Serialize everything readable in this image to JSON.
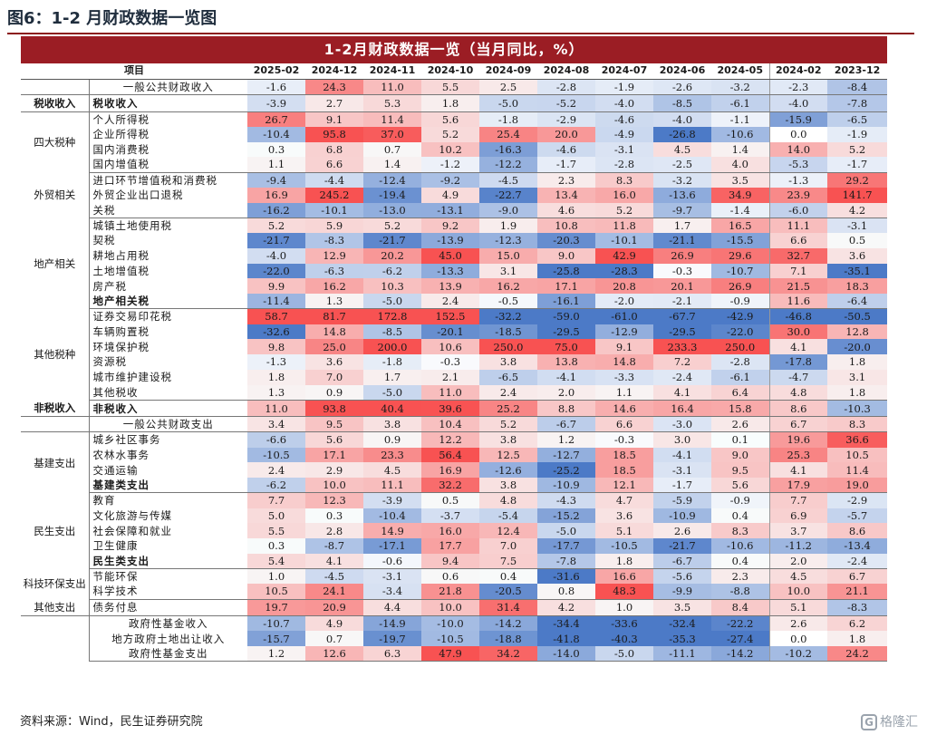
{
  "figure_title": "图6：1-2 月财政数据一览图",
  "source": "资料来源：Wind，民生证券研究院",
  "watermark": "格隆汇",
  "chart_data": {
    "type": "table",
    "title": "1-2月财政数据一览（当月同比，%）",
    "item_header": "项目",
    "columns": [
      "2025-02",
      "2024-12",
      "2024-11",
      "2024-10",
      "2024-09",
      "2024-08",
      "2024-07",
      "2024-06",
      "2024-05",
      "2024-02",
      "2023-12"
    ],
    "groups": [
      {
        "label": "",
        "rows": [
          {
            "item": "一般公共财政收入",
            "values": [
              -1.6,
              24.3,
              11.0,
              5.5,
              2.5,
              -2.8,
              -1.9,
              -2.6,
              -3.2,
              -2.3,
              -8.4
            ]
          }
        ]
      },
      {
        "label": "税收收入",
        "rows": [
          {
            "item": "税收收入",
            "bold": true,
            "values": [
              -3.9,
              2.7,
              5.3,
              1.8,
              -5.0,
              -5.2,
              -4.0,
              -8.5,
              -6.1,
              -4.0,
              -7.8
            ]
          }
        ]
      },
      {
        "label": "四大税种",
        "rows": [
          {
            "item": "个人所得税",
            "values": [
              26.7,
              9.1,
              11.4,
              5.6,
              -1.8,
              -2.9,
              -4.6,
              -4.0,
              -1.1,
              -15.9,
              -6.5
            ]
          },
          {
            "item": "企业所得税",
            "values": [
              -10.4,
              95.8,
              37.0,
              5.2,
              25.4,
              20.0,
              -4.9,
              -26.8,
              -10.6,
              0.0,
              -1.9
            ]
          },
          {
            "item": "国内消费税",
            "values": [
              0.3,
              6.8,
              0.7,
              10.2,
              -16.3,
              -4.6,
              -3.1,
              4.5,
              1.4,
              14.0,
              5.2
            ]
          },
          {
            "item": "国内增值税",
            "values": [
              1.1,
              6.6,
              1.4,
              -1.2,
              -12.2,
              -1.7,
              -2.8,
              -2.5,
              4.0,
              -5.3,
              -1.7
            ]
          }
        ]
      },
      {
        "label": "外贸相关",
        "rows": [
          {
            "item": "进口环节增值税和消费税",
            "values": [
              -9.4,
              -4.4,
              -12.4,
              -9.2,
              -4.5,
              2.3,
              8.3,
              -3.2,
              3.5,
              -1.3,
              29.2
            ]
          },
          {
            "item": "外贸企业出口退税",
            "values": [
              16.9,
              245.2,
              -19.4,
              4.9,
              -22.7,
              13.4,
              16.0,
              -13.6,
              34.9,
              23.9,
              141.7
            ]
          },
          {
            "item": "关税",
            "values": [
              -16.2,
              -10.1,
              -13.0,
              -13.1,
              -9.0,
              4.6,
              5.2,
              -9.7,
              -1.4,
              -6.0,
              4.2
            ]
          }
        ]
      },
      {
        "label": "地产相关",
        "rows": [
          {
            "item": "城镇土地使用税",
            "values": [
              5.2,
              5.9,
              5.2,
              9.2,
              1.9,
              10.8,
              11.8,
              1.7,
              16.5,
              11.1,
              -3.1
            ]
          },
          {
            "item": "契税",
            "values": [
              -21.7,
              -8.3,
              -21.7,
              -13.9,
              -12.3,
              -20.3,
              -10.1,
              -21.1,
              -15.5,
              6.6,
              0.5
            ]
          },
          {
            "item": "耕地占用税",
            "values": [
              -4.0,
              12.9,
              20.2,
              45.0,
              15.0,
              9.0,
              42.9,
              26.9,
              29.6,
              32.7,
              3.6
            ]
          },
          {
            "item": "土地增值税",
            "values": [
              -22.0,
              -6.3,
              -6.2,
              -13.3,
              3.1,
              -25.8,
              -28.3,
              -0.3,
              -10.7,
              7.1,
              -35.1
            ]
          },
          {
            "item": "房产税",
            "values": [
              9.9,
              16.2,
              10.3,
              13.9,
              16.2,
              17.1,
              20.8,
              20.1,
              26.9,
              21.5,
              18.3
            ]
          },
          {
            "item": "地产相关税",
            "bold": true,
            "values": [
              -11.4,
              1.3,
              -5.0,
              2.4,
              -0.5,
              -16.1,
              -2.0,
              -2.1,
              -0.9,
              11.6,
              -6.4
            ]
          }
        ]
      },
      {
        "label": "其他税种",
        "rows": [
          {
            "item": "证券交易印花税",
            "values": [
              58.7,
              81.7,
              172.8,
              152.5,
              -32.2,
              -59.0,
              -61.0,
              -67.7,
              -42.9,
              -46.8,
              -50.5
            ]
          },
          {
            "item": "车辆购置税",
            "values": [
              -32.6,
              14.8,
              -8.5,
              -20.1,
              -18.5,
              -29.5,
              -12.9,
              -29.5,
              -22.0,
              30.0,
              12.8
            ]
          },
          {
            "item": "环境保护税",
            "values": [
              9.8,
              25.0,
              200.0,
              10.6,
              250.0,
              75.0,
              9.1,
              233.3,
              250.0,
              4.1,
              -20.0
            ]
          },
          {
            "item": "资源税",
            "values": [
              -1.3,
              3.6,
              -1.8,
              -0.3,
              3.8,
              13.8,
              14.8,
              7.2,
              -2.8,
              -17.8,
              1.8
            ]
          },
          {
            "item": "城市维护建设税",
            "values": [
              1.8,
              7.0,
              1.7,
              2.1,
              -6.5,
              -4.1,
              -3.3,
              -2.4,
              -6.1,
              -4.7,
              3.1
            ]
          },
          {
            "item": "其他税收",
            "values": [
              1.3,
              0.9,
              -5.0,
              11.0,
              2.4,
              2.0,
              1.1,
              4.1,
              6.4,
              4.8,
              1.8
            ]
          }
        ]
      },
      {
        "label": "非税收入",
        "rows": [
          {
            "item": "非税收入",
            "bold": true,
            "values": [
              11.0,
              93.8,
              40.4,
              39.6,
              25.2,
              8.8,
              14.6,
              16.4,
              15.8,
              8.6,
              -10.3
            ]
          }
        ]
      },
      {
        "label": "",
        "rows": [
          {
            "item": "一般公共财政支出",
            "values": [
              3.4,
              9.5,
              3.8,
              10.4,
              5.2,
              -6.7,
              6.6,
              -3.0,
              2.6,
              6.7,
              8.3
            ]
          }
        ]
      },
      {
        "label": "基建支出",
        "rows": [
          {
            "item": "城乡社区事务",
            "values": [
              -6.6,
              5.6,
              0.9,
              12.2,
              3.8,
              1.2,
              -0.3,
              3.0,
              0.1,
              19.6,
              36.6
            ]
          },
          {
            "item": "农林水事务",
            "values": [
              -10.5,
              17.1,
              23.3,
              56.4,
              12.5,
              -12.7,
              18.5,
              -4.1,
              9.0,
              25.3,
              10.5
            ]
          },
          {
            "item": "交通运输",
            "values": [
              2.4,
              2.9,
              4.5,
              16.9,
              -12.6,
              -25.2,
              18.5,
              -3.1,
              9.5,
              4.1,
              11.4
            ]
          },
          {
            "item": "基建类支出",
            "bold": true,
            "values": [
              -6.2,
              10.0,
              11.1,
              32.2,
              3.8,
              -10.9,
              12.1,
              -1.7,
              5.6,
              17.9,
              19.0
            ]
          }
        ]
      },
      {
        "label": "民生支出",
        "rows": [
          {
            "item": "教育",
            "values": [
              7.7,
              12.3,
              -3.9,
              0.5,
              4.8,
              -4.3,
              4.7,
              -5.9,
              -0.9,
              7.7,
              -2.9
            ]
          },
          {
            "item": "文化旅游与传媒",
            "values": [
              5.0,
              0.3,
              -10.4,
              -3.7,
              -5.4,
              -15.2,
              3.6,
              -10.9,
              0.4,
              6.9,
              -5.7
            ]
          },
          {
            "item": "社会保障和就业",
            "values": [
              5.5,
              2.8,
              14.9,
              16.0,
              12.4,
              -5.0,
              5.1,
              2.6,
              8.3,
              3.7,
              8.6
            ]
          },
          {
            "item": "卫生健康",
            "values": [
              0.3,
              -8.7,
              -17.1,
              17.7,
              7.0,
              -17.7,
              -10.5,
              -21.7,
              -10.6,
              -11.2,
              -13.4
            ]
          },
          {
            "item": "民生类支出",
            "bold": true,
            "values": [
              5.4,
              4.1,
              -0.6,
              9.4,
              7.5,
              -7.8,
              1.8,
              -6.7,
              0.4,
              2.0,
              -2.4
            ]
          }
        ]
      },
      {
        "label": "科技环保支出",
        "rows": [
          {
            "item": "节能环保",
            "values": [
              1.0,
              -4.5,
              -3.1,
              0.6,
              0.4,
              -31.6,
              16.6,
              -5.6,
              2.3,
              4.5,
              6.7
            ]
          },
          {
            "item": "科学技术",
            "values": [
              10.5,
              24.1,
              -3.4,
              21.8,
              -20.5,
              0.8,
              48.3,
              -9.9,
              -8.8,
              10.0,
              21.1
            ]
          }
        ]
      },
      {
        "label": "其他支出",
        "rows": [
          {
            "item": "债务付息",
            "values": [
              19.7,
              20.9,
              4.4,
              10.0,
              31.4,
              4.2,
              1.0,
              3.5,
              8.4,
              5.1,
              -8.3
            ]
          }
        ]
      },
      {
        "label": "",
        "rows": [
          {
            "item": "政府性基金收入",
            "values": [
              -10.7,
              4.9,
              -14.9,
              -10.0,
              -14.2,
              -34.4,
              -33.6,
              -32.4,
              -22.2,
              2.6,
              6.2
            ]
          },
          {
            "item": "地方政府土地出让收入",
            "values": [
              -15.7,
              0.7,
              -19.7,
              -10.5,
              -18.8,
              -41.8,
              -40.3,
              -35.3,
              -27.4,
              0.0,
              1.8
            ]
          },
          {
            "item": "政府性基金支出",
            "values": [
              1.2,
              12.6,
              6.3,
              47.9,
              34.2,
              -14.0,
              -5.0,
              -11.1,
              -14.2,
              -10.2,
              24.2
            ]
          }
        ]
      }
    ]
  }
}
